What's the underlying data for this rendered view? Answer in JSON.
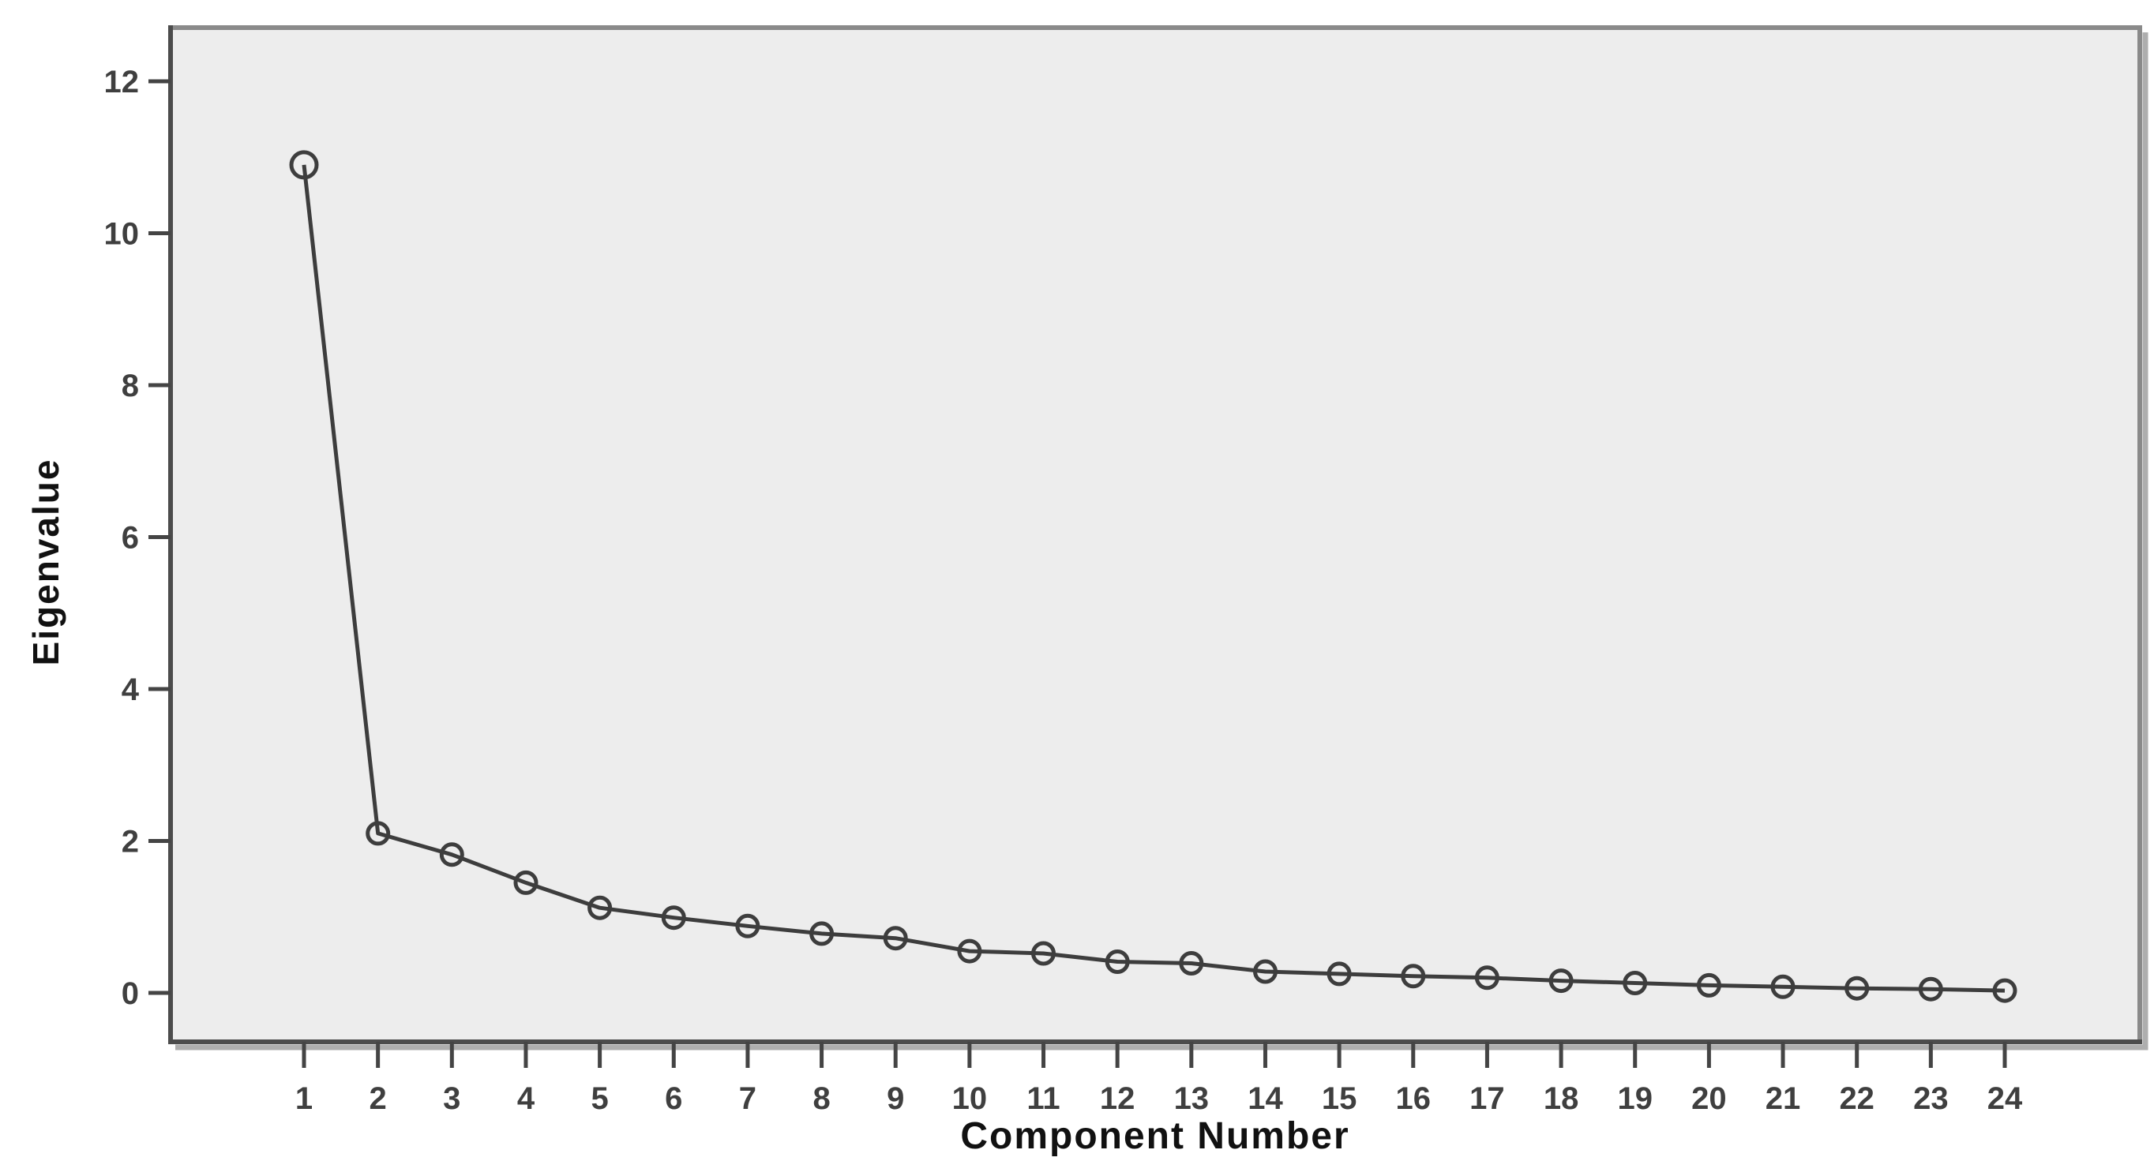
{
  "chart_data": {
    "type": "line",
    "title": "",
    "xlabel": "Component Number",
    "ylabel": "Eigenvalue",
    "x": [
      1,
      2,
      3,
      4,
      5,
      6,
      7,
      8,
      9,
      10,
      11,
      12,
      13,
      14,
      15,
      16,
      17,
      18,
      19,
      20,
      21,
      22,
      23,
      24
    ],
    "series": [
      {
        "name": "Eigenvalue",
        "values": [
          10.9,
          2.1,
          1.82,
          1.45,
          1.12,
          0.99,
          0.88,
          0.78,
          0.72,
          0.55,
          0.52,
          0.41,
          0.39,
          0.28,
          0.25,
          0.22,
          0.2,
          0.16,
          0.13,
          0.1,
          0.08,
          0.06,
          0.05,
          0.03
        ]
      }
    ],
    "xticks": [
      "1",
      "2",
      "3",
      "4",
      "5",
      "6",
      "7",
      "8",
      "9",
      "10",
      "11",
      "12",
      "13",
      "14",
      "15",
      "16",
      "17",
      "18",
      "19",
      "20",
      "21",
      "22",
      "23",
      "24"
    ],
    "yticks": [
      "0",
      "2",
      "4",
      "6",
      "8",
      "10",
      "12"
    ],
    "ytick_values": [
      0,
      2,
      4,
      6,
      8,
      10,
      12
    ],
    "xlim": [
      -0.8,
      25.8
    ],
    "ylim": [
      -0.65,
      12.72
    ],
    "grid": false,
    "legend": null,
    "marker": "open-circle",
    "colors": {
      "outer_bg": "#ffffff",
      "plot_bg": "#ededed",
      "frame": "#8a8a8a",
      "axis_line": "#4c4c4c",
      "shadow": "#aeaeae",
      "line": "#3d3d3d",
      "marker_stroke": "#3d3d3d",
      "tick": "#444444",
      "tick_text": "#3f3f3f",
      "title_text": "#111111"
    }
  }
}
